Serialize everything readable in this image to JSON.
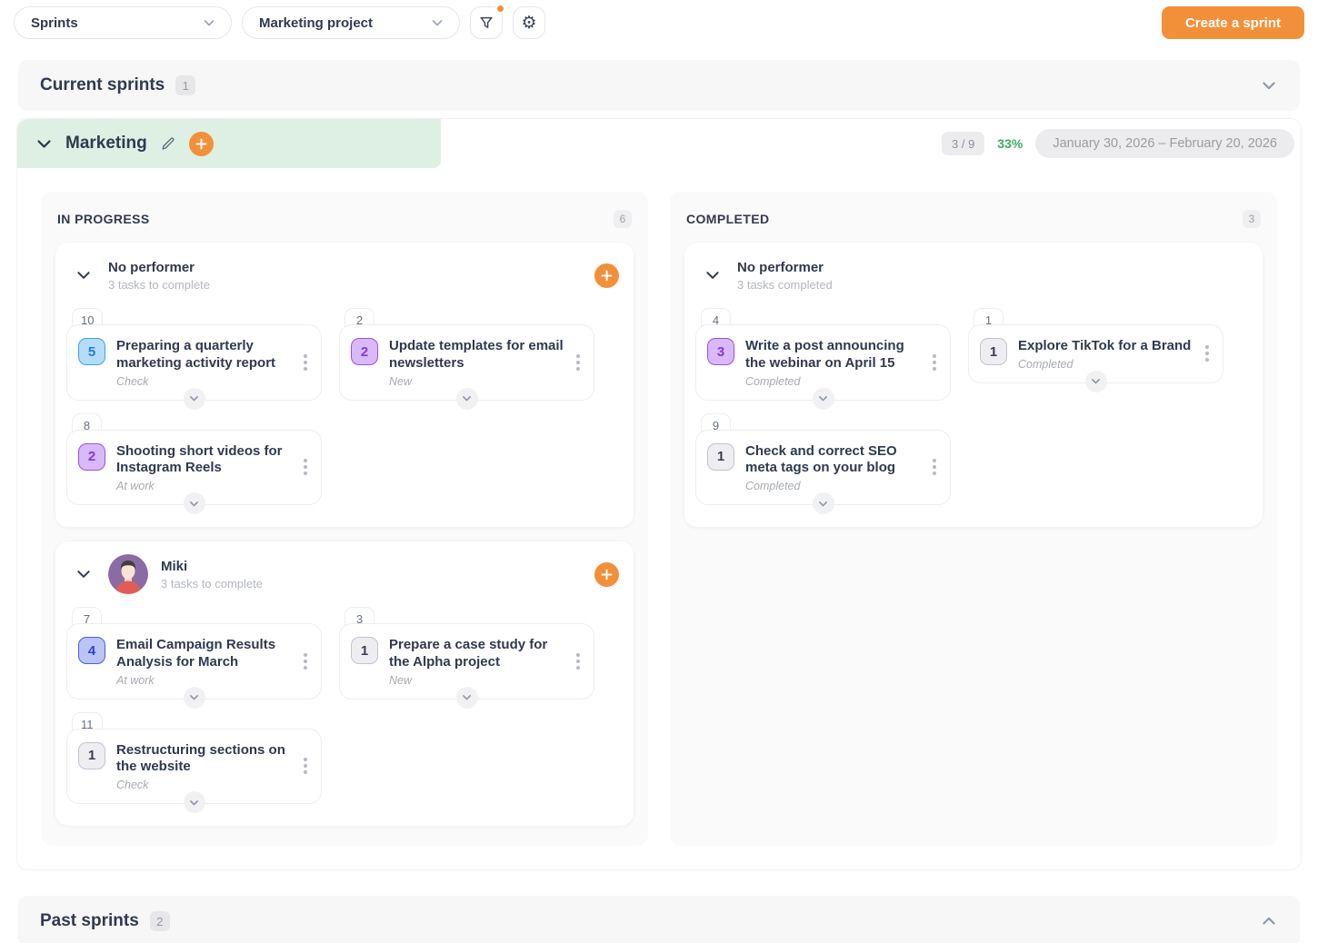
{
  "topbar": {
    "view_select": "Sprints",
    "project_select": "Marketing project",
    "create_button": "Create a sprint"
  },
  "current_section": {
    "title": "Current sprints",
    "count": "1"
  },
  "past_section": {
    "title": "Past sprints",
    "count": "2"
  },
  "sprint": {
    "name": "Marketing",
    "done_ratio": "3 / 9",
    "done_percent": "33%",
    "date_range": "January 30, 2026 – February 20, 2026"
  },
  "board": {
    "columns": [
      {
        "id": "in-progress",
        "title": "IN PROGRESS",
        "count": "6",
        "groups": [
          {
            "name": "No performer",
            "subtitle": "3 tasks to complete",
            "avatar": null,
            "can_add": true,
            "tasks": [
              {
                "id": "10",
                "points": "5",
                "points_color": "blue",
                "title": "Preparing a quarterly marketing activity report",
                "status": "Check"
              },
              {
                "id": "2",
                "points": "2",
                "points_color": "purple",
                "title": "Update templates for email newsletters",
                "status": "New"
              },
              {
                "id": "8",
                "points": "2",
                "points_color": "purple",
                "title": "Shooting short videos for Instagram Reels",
                "status": "At work"
              }
            ]
          },
          {
            "name": "Miki",
            "subtitle": "3 tasks to complete",
            "avatar": "miki",
            "can_add": true,
            "tasks": [
              {
                "id": "7",
                "points": "4",
                "points_color": "indigo",
                "title": "Email Campaign Results Analysis for March",
                "status": "At work"
              },
              {
                "id": "3",
                "points": "1",
                "points_color": "gray",
                "title": "Prepare a case study for the Alpha project",
                "status": "New"
              },
              {
                "id": "11",
                "points": "1",
                "points_color": "gray",
                "title": "Restructuring sections on the website",
                "status": "Check"
              }
            ]
          }
        ]
      },
      {
        "id": "completed",
        "title": "COMPLETED",
        "count": "3",
        "groups": [
          {
            "name": "No performer",
            "subtitle": "3 tasks completed",
            "avatar": null,
            "can_add": false,
            "tasks": [
              {
                "id": "4",
                "points": "3",
                "points_color": "purple",
                "title": "Write a post announcing the webinar on April 15",
                "status": "Completed"
              },
              {
                "id": "1",
                "points": "1",
                "points_color": "gray",
                "title": "Explore TikTok for a Brand",
                "status": "Completed"
              },
              {
                "id": "9",
                "points": "1",
                "points_color": "gray",
                "title": "Check and correct SEO meta tags on your blog",
                "status": "Completed"
              }
            ]
          }
        ]
      }
    ]
  },
  "colors": {
    "accent_orange": "#f2903a",
    "progress_green": "#3fab5f",
    "sprint_header_green": "#def0e3",
    "points_blue": "#1d7fd0",
    "points_indigo": "#3142cc",
    "points_purple": "#8438d8",
    "text_dark": "#2f3a4f"
  }
}
